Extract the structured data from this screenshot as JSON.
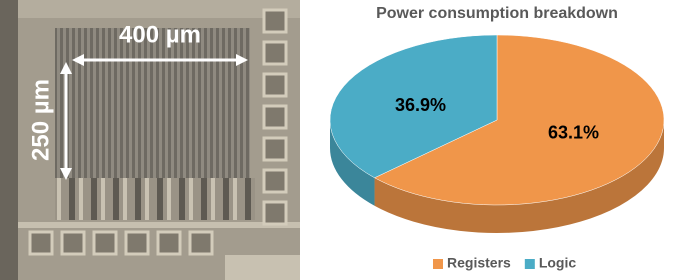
{
  "die_photo": {
    "width_label": "400 µm",
    "height_label": "250 µm"
  },
  "chart_data": {
    "type": "pie",
    "title": "Power consumption breakdown",
    "categories": [
      "Registers",
      "Logic"
    ],
    "values": [
      63.1,
      36.9
    ],
    "value_labels": [
      "63.1%",
      "36.9%"
    ],
    "colors": [
      "#f0964a",
      "#4bacc6"
    ],
    "legend": "bottom"
  }
}
